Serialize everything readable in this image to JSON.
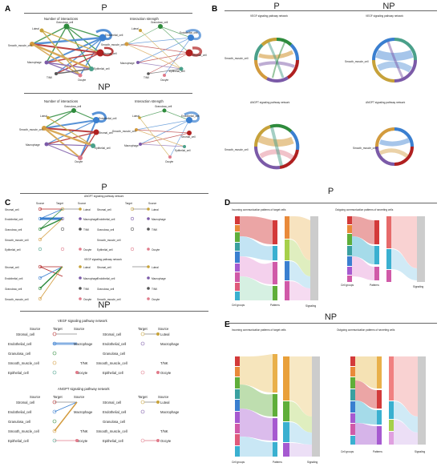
{
  "panels": {
    "A": {
      "label": "A",
      "group_p": "P",
      "group_np": "NP",
      "subtitle_left": "Number of interactions",
      "subtitle_right": "Interaction strength",
      "nodes": [
        "Granulosa_cell",
        "Luteal",
        "Endothelial_cell",
        "Smooth_muscle_cell",
        "Stromal_cell",
        "Macrophage",
        "Epithelial_cell",
        "T/NK",
        "Oocyte"
      ]
    },
    "B": {
      "label": "B",
      "group_p": "P",
      "group_np": "NP",
      "vegf_title": "VEGF signaling pathway network",
      "angpt_title": "ANGPT signaling pathway network",
      "smc_label": "Smooth_muscle_cell"
    },
    "C": {
      "label": "C",
      "group_p": "P",
      "group_np": "NP",
      "angpt_title": "ANGPT signaling pathway network",
      "vegf_title": "VEGF signaling pathway network",
      "col_source": "Source",
      "col_target": "Target",
      "left_nodes": [
        "Stromal_cell",
        "Endothelial_cell",
        "Granulosa_cell",
        "Smooth_muscle_cell",
        "Epithelial_cell"
      ],
      "right_nodes": [
        "Luteal",
        "Macrophage",
        "T/NK",
        "Oocyte"
      ]
    },
    "D": {
      "label": "D",
      "group": "P",
      "incoming_title": "Incoming communication patterns of target cells",
      "outgoing_title": "Outgoing communication patterns of secreting cells",
      "axis_cell": "Cell groups",
      "axis_patterns": "Patterns",
      "axis_signaling": "Signaling"
    },
    "E": {
      "label": "E",
      "group": "NP",
      "incoming_title": "Incoming communication patterns of target cells",
      "outgoing_title": "Outgoing communication patterns of secreting cells",
      "axis_cell": "Cell groups",
      "axis_patterns": "Patterns",
      "axis_signaling": "Signaling"
    }
  },
  "colors": {
    "granulosa": "#2e8b3c",
    "luteal": "#c7a23a",
    "endothelial": "#3a7fd0",
    "smooth_muscle": "#d39b3d",
    "stromal": "#b02020",
    "macrophage": "#7b5aa8",
    "epithelial": "#4aa08a",
    "tnk": "#555555",
    "oocyte": "#e07a8a"
  }
}
